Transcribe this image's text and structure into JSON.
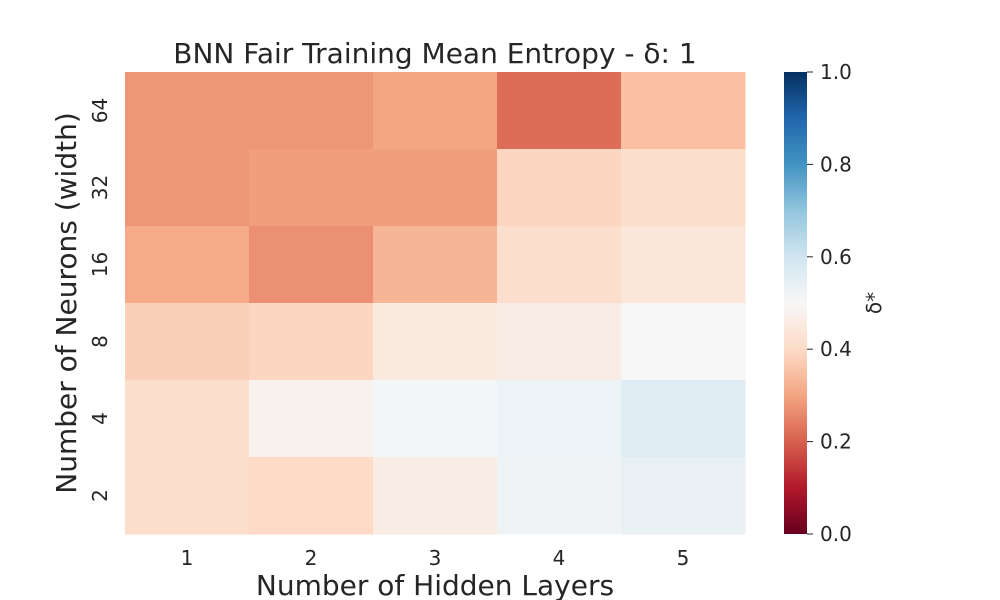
{
  "chart_data": {
    "type": "heatmap",
    "title": "BNN Fair Training Mean Entropy - δ: 1",
    "xlabel": "Number of Hidden Layers",
    "ylabel": "Number of Neurons (width)",
    "x_categories": [
      "1",
      "2",
      "3",
      "4",
      "5"
    ],
    "y_categories": [
      "64",
      "32",
      "16",
      "8",
      "4",
      "2"
    ],
    "values": [
      [
        0.28,
        0.28,
        0.3,
        0.22,
        0.35
      ],
      [
        0.28,
        0.29,
        0.29,
        0.39,
        0.41
      ],
      [
        0.31,
        0.27,
        0.33,
        0.41,
        0.44
      ],
      [
        0.38,
        0.39,
        0.45,
        0.46,
        0.5
      ],
      [
        0.41,
        0.48,
        0.51,
        0.53,
        0.56
      ],
      [
        0.41,
        0.4,
        0.46,
        0.52,
        0.54
      ]
    ],
    "colorbar": {
      "label": "δ*",
      "vmin": 0.0,
      "vmax": 1.0,
      "ticks": [
        "0.0",
        "0.2",
        "0.4",
        "0.6",
        "0.8",
        "1.0"
      ],
      "colormap": "RdBu"
    }
  }
}
